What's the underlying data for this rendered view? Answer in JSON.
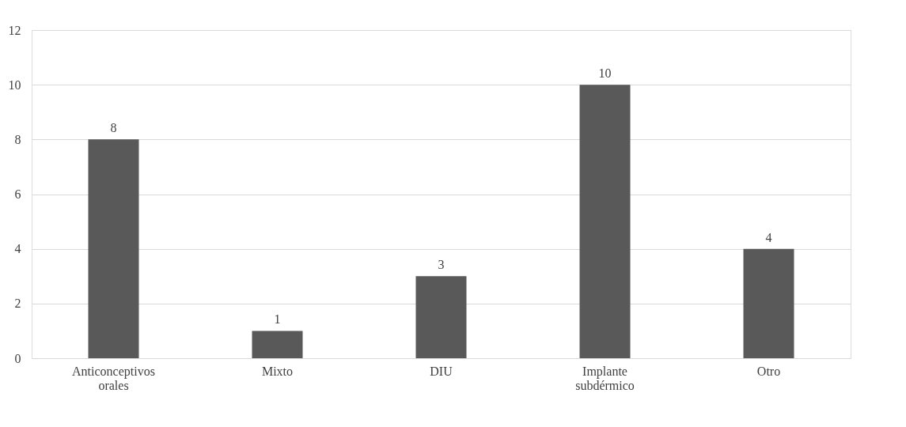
{
  "chart_data": {
    "type": "bar",
    "categories": [
      "Anticonceptivos orales",
      "Mixto",
      "DIU",
      "Implante subdérmico",
      "Otro"
    ],
    "values": [
      8,
      1,
      3,
      10,
      4
    ],
    "color": "#595959",
    "ylim": [
      0,
      12
    ],
    "yticks": [
      0,
      2,
      4,
      6,
      8,
      10,
      12
    ],
    "grid": "y",
    "data_labels": true
  }
}
